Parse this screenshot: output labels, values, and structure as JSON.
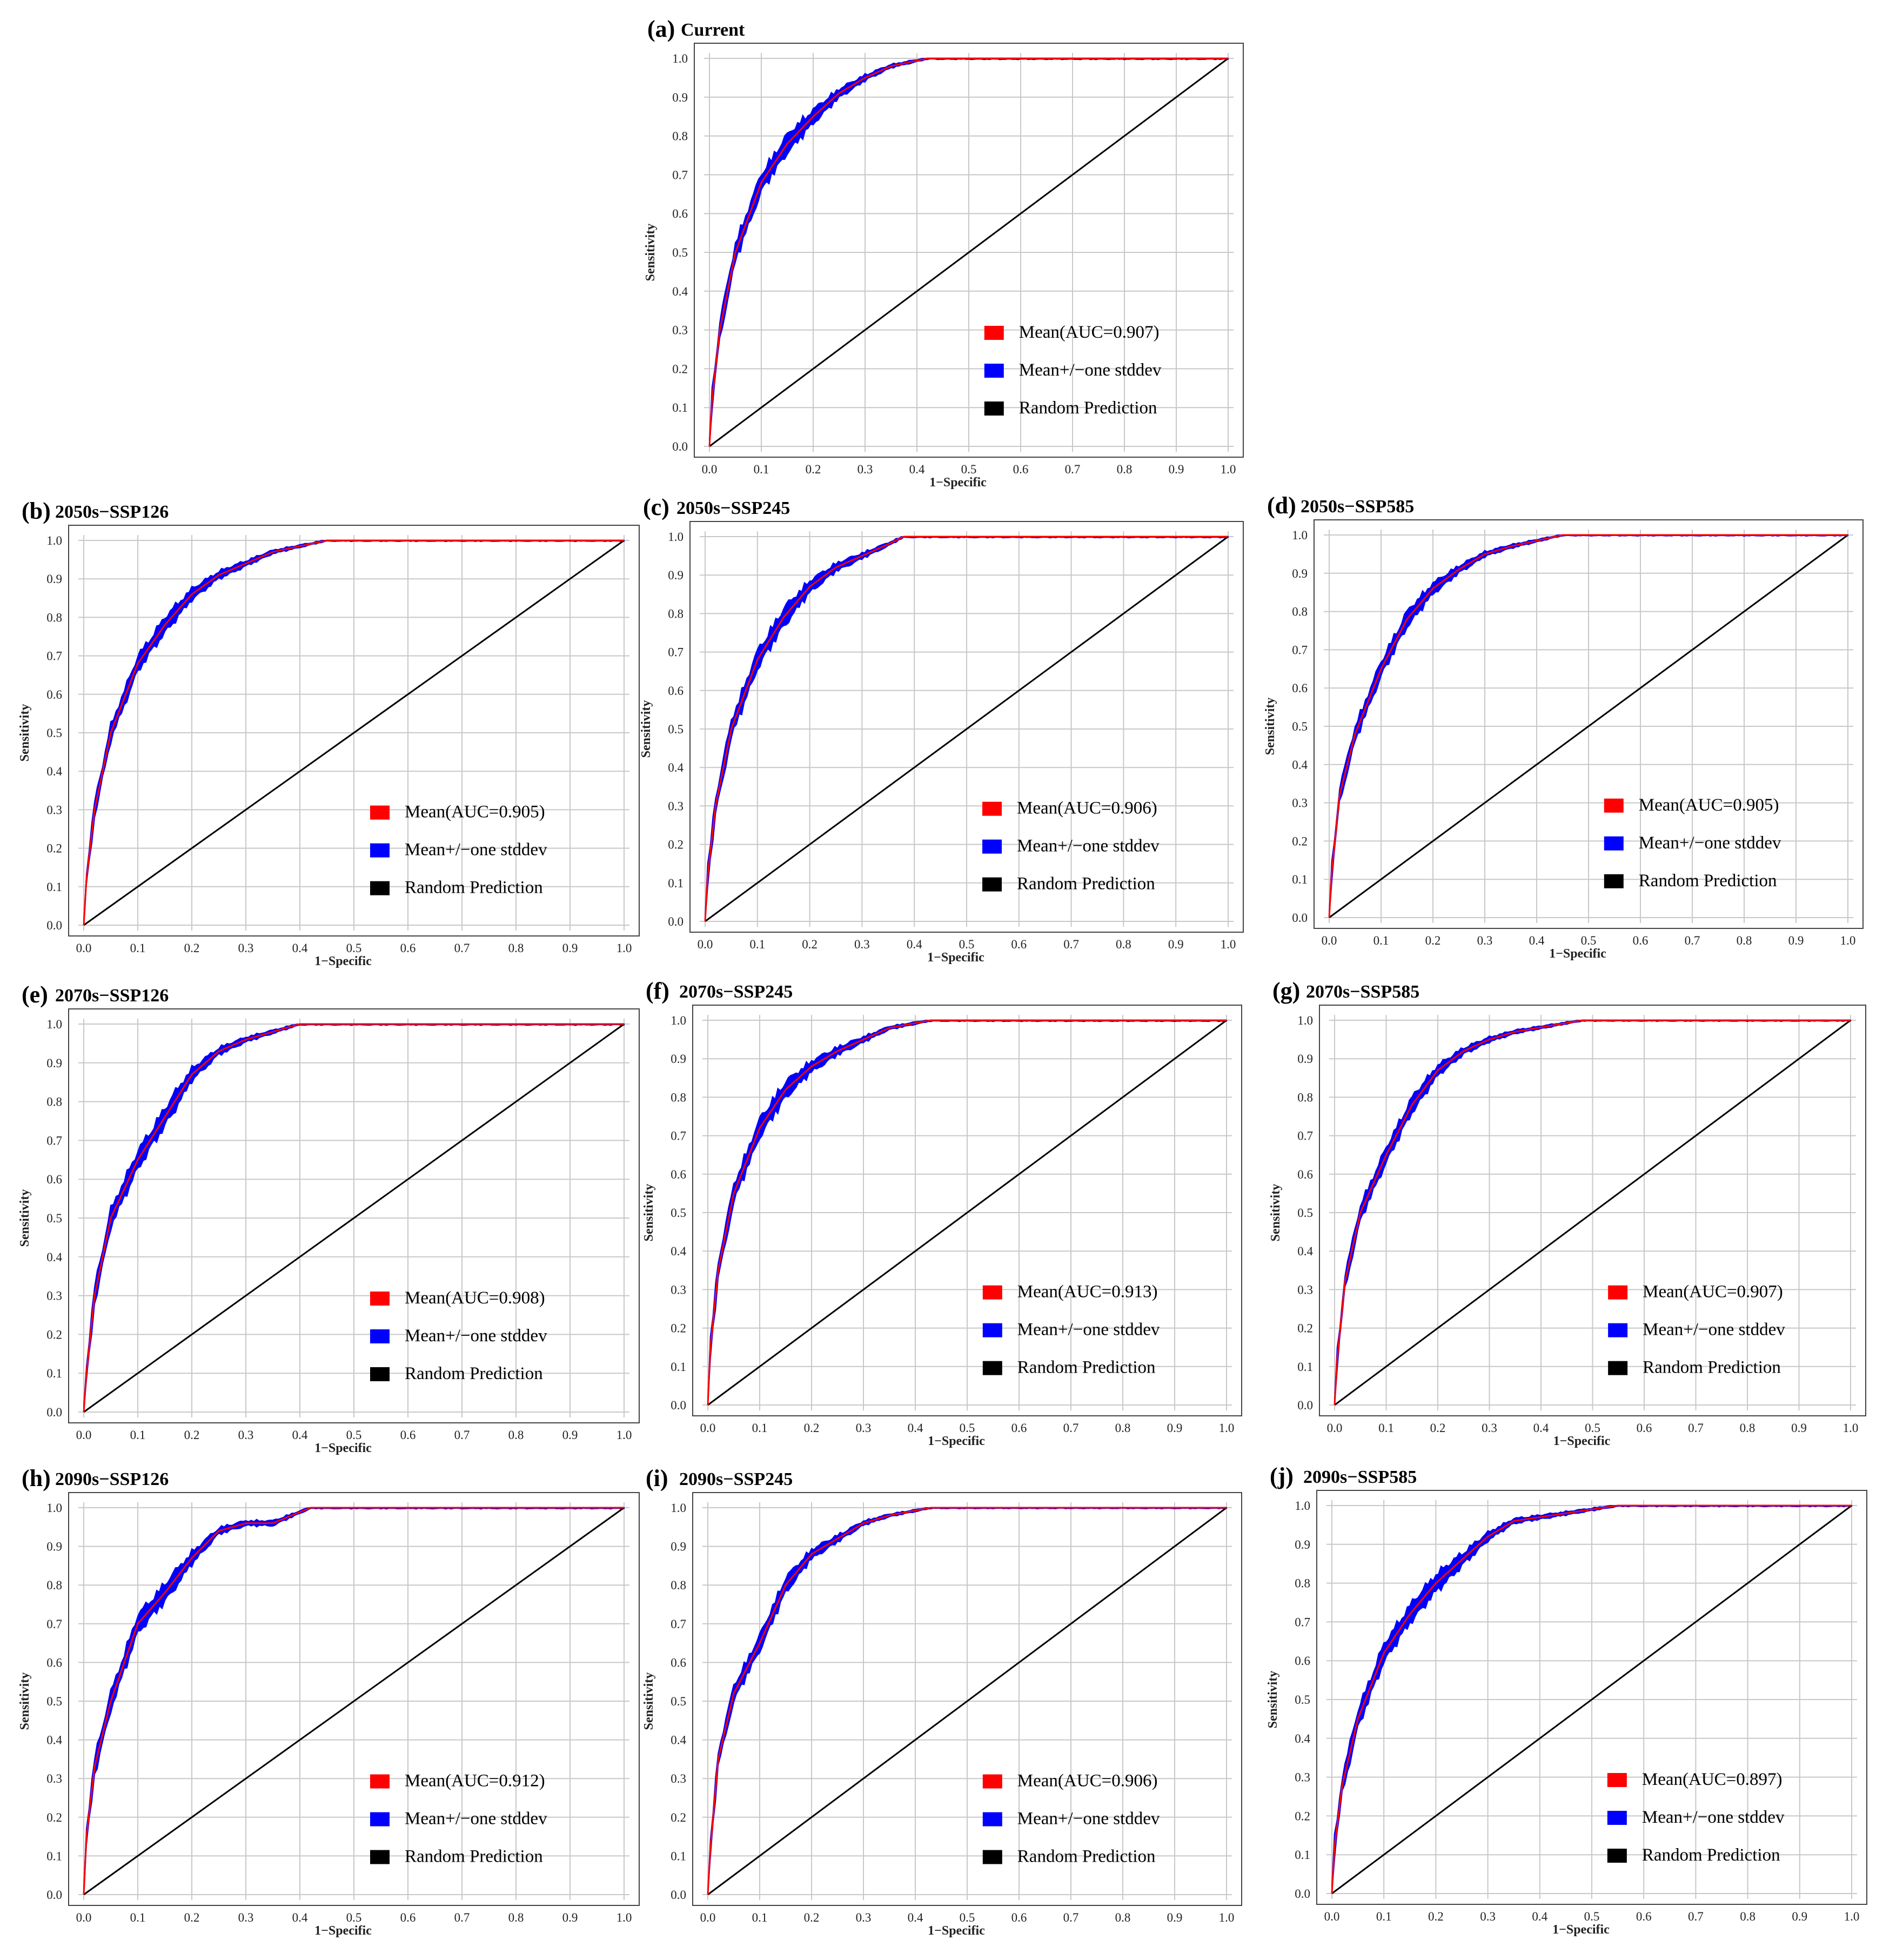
{
  "figure": {
    "colors": {
      "mean": "#ff0000",
      "band": "#0000ff",
      "random": "#000000",
      "grid": "#c8c8c8",
      "axis": "#444444"
    }
  },
  "chart_data": [
    {
      "id": "a",
      "label": "(a)",
      "title": "Current",
      "type": "line",
      "xlabel": "1−Specific",
      "ylabel": "Sensitivity",
      "xlim": [
        0,
        1
      ],
      "ylim": [
        0,
        1
      ],
      "xticks": [
        "0.0",
        "0.1",
        "0.2",
        "0.3",
        "0.4",
        "0.5",
        "0.6",
        "0.7",
        "0.8",
        "0.9",
        "1.0"
      ],
      "yticks": [
        "0.0",
        "0.1",
        "0.2",
        "0.3",
        "0.4",
        "0.5",
        "0.6",
        "0.7",
        "0.8",
        "0.9",
        "1.0"
      ],
      "grid": true,
      "legend_position": "bottom-right",
      "legend": [
        "Mean(AUC=0.907)",
        "Mean+/−one stddev",
        "Random Prediction"
      ],
      "auc": 0.907,
      "stddev_band": 0.035,
      "series": [
        {
          "name": "Mean",
          "x": [
            0,
            0.005,
            0.02,
            0.05,
            0.1,
            0.15,
            0.2,
            0.25,
            0.3,
            0.35,
            0.42,
            1.0
          ],
          "y": [
            0,
            0.12,
            0.3,
            0.5,
            0.68,
            0.78,
            0.85,
            0.91,
            0.95,
            0.98,
            1.0,
            1.0
          ]
        },
        {
          "name": "Random Prediction",
          "x": [
            0,
            1
          ],
          "y": [
            0,
            1
          ]
        }
      ]
    },
    {
      "id": "b",
      "label": "(b)",
      "title": "2050s−SSP126",
      "type": "line",
      "xlabel": "1−Specific",
      "ylabel": "Sensitivity",
      "xlim": [
        0,
        1
      ],
      "ylim": [
        0,
        1
      ],
      "xticks": [
        "0.0",
        "0.1",
        "0.2",
        "0.3",
        "0.4",
        "0.5",
        "0.6",
        "0.7",
        "0.8",
        "0.9",
        "1.0"
      ],
      "yticks": [
        "0.0",
        "0.1",
        "0.2",
        "0.3",
        "0.4",
        "0.5",
        "0.6",
        "0.7",
        "0.8",
        "0.9",
        "1.0"
      ],
      "grid": true,
      "legend_position": "bottom-right",
      "legend": [
        "Mean(AUC=0.905)",
        "Mean+/−one stddev",
        "Random Prediction"
      ],
      "auc": 0.905,
      "stddev_band": 0.03,
      "series": [
        {
          "name": "Mean",
          "x": [
            0,
            0.005,
            0.02,
            0.05,
            0.1,
            0.15,
            0.2,
            0.25,
            0.3,
            0.35,
            0.45,
            1.0
          ],
          "y": [
            0,
            0.12,
            0.3,
            0.5,
            0.68,
            0.78,
            0.86,
            0.91,
            0.94,
            0.97,
            1.0,
            1.0
          ]
        },
        {
          "name": "Random Prediction",
          "x": [
            0,
            1
          ],
          "y": [
            0,
            1
          ]
        }
      ]
    },
    {
      "id": "c",
      "label": "(c)",
      "title": "2050s−SSP245",
      "type": "line",
      "xlabel": "1−Specific",
      "ylabel": "Sensitivity",
      "xlim": [
        0,
        1
      ],
      "ylim": [
        0,
        1
      ],
      "xticks": [
        "0.0",
        "0.1",
        "0.2",
        "0.3",
        "0.4",
        "0.5",
        "0.6",
        "0.7",
        "0.8",
        "0.9",
        "1.0"
      ],
      "yticks": [
        "0.0",
        "0.1",
        "0.2",
        "0.3",
        "0.4",
        "0.5",
        "0.6",
        "0.7",
        "0.8",
        "0.9",
        "1.0"
      ],
      "grid": true,
      "legend_position": "bottom-right",
      "legend": [
        "Mean(AUC=0.906)",
        "Mean+/−one stddev",
        "Random Prediction"
      ],
      "auc": 0.906,
      "stddev_band": 0.035,
      "series": [
        {
          "name": "Mean",
          "x": [
            0,
            0.005,
            0.02,
            0.05,
            0.1,
            0.15,
            0.2,
            0.25,
            0.3,
            0.35,
            0.38,
            1.0
          ],
          "y": [
            0,
            0.12,
            0.3,
            0.5,
            0.68,
            0.79,
            0.87,
            0.92,
            0.95,
            0.98,
            1.0,
            1.0
          ]
        },
        {
          "name": "Random Prediction",
          "x": [
            0,
            1
          ],
          "y": [
            0,
            1
          ]
        }
      ]
    },
    {
      "id": "d",
      "label": "(d)",
      "title": "2050s−SSP585",
      "type": "line",
      "xlabel": "1−Specific",
      "ylabel": "Sensitivity",
      "xlim": [
        0,
        1
      ],
      "ylim": [
        0,
        1
      ],
      "xticks": [
        "0.0",
        "0.1",
        "0.2",
        "0.3",
        "0.4",
        "0.5",
        "0.6",
        "0.7",
        "0.8",
        "0.9",
        "1.0"
      ],
      "yticks": [
        "0.0",
        "0.1",
        "0.2",
        "0.3",
        "0.4",
        "0.5",
        "0.6",
        "0.7",
        "0.8",
        "0.9",
        "1.0"
      ],
      "grid": true,
      "legend_position": "bottom-right",
      "legend": [
        "Mean(AUC=0.905)",
        "Mean+/−one stddev",
        "Random Prediction"
      ],
      "auc": 0.905,
      "stddev_band": 0.03,
      "series": [
        {
          "name": "Mean",
          "x": [
            0,
            0.005,
            0.02,
            0.05,
            0.1,
            0.15,
            0.2,
            0.25,
            0.3,
            0.35,
            0.45,
            1.0
          ],
          "y": [
            0,
            0.12,
            0.32,
            0.48,
            0.65,
            0.78,
            0.86,
            0.91,
            0.95,
            0.97,
            1.0,
            1.0
          ]
        },
        {
          "name": "Random Prediction",
          "x": [
            0,
            1
          ],
          "y": [
            0,
            1
          ]
        }
      ]
    },
    {
      "id": "e",
      "label": "(e)",
      "title": "2070s−SSP126",
      "type": "line",
      "xlabel": "1−Specific",
      "ylabel": "Sensitivity",
      "xlim": [
        0,
        1
      ],
      "ylim": [
        0,
        1
      ],
      "xticks": [
        "0.0",
        "0.1",
        "0.2",
        "0.3",
        "0.4",
        "0.5",
        "0.6",
        "0.7",
        "0.8",
        "0.9",
        "1.0"
      ],
      "yticks": [
        "0.0",
        "0.1",
        "0.2",
        "0.3",
        "0.4",
        "0.5",
        "0.6",
        "0.7",
        "0.8",
        "0.9",
        "1.0"
      ],
      "grid": true,
      "legend_position": "bottom-right",
      "legend": [
        "Mean(AUC=0.908)",
        "Mean+/−one stddev",
        "Random Prediction"
      ],
      "auc": 0.908,
      "stddev_band": 0.035,
      "series": [
        {
          "name": "Mean",
          "x": [
            0,
            0.005,
            0.02,
            0.05,
            0.1,
            0.15,
            0.2,
            0.25,
            0.3,
            0.35,
            0.4,
            1.0
          ],
          "y": [
            0,
            0.1,
            0.3,
            0.5,
            0.65,
            0.76,
            0.87,
            0.93,
            0.96,
            0.98,
            1.0,
            1.0
          ]
        },
        {
          "name": "Random Prediction",
          "x": [
            0,
            1
          ],
          "y": [
            0,
            1
          ]
        }
      ]
    },
    {
      "id": "f",
      "label": "(f)",
      "title": "2070s−SSP245",
      "type": "line",
      "xlabel": "1−Specific",
      "ylabel": "Sensitivity",
      "xlim": [
        0,
        1
      ],
      "ylim": [
        0,
        1
      ],
      "xticks": [
        "0.0",
        "0.1",
        "0.2",
        "0.3",
        "0.4",
        "0.5",
        "0.6",
        "0.7",
        "0.8",
        "0.9",
        "1.0"
      ],
      "yticks": [
        "0.0",
        "0.1",
        "0.2",
        "0.3",
        "0.4",
        "0.5",
        "0.6",
        "0.7",
        "0.8",
        "0.9",
        "1.0"
      ],
      "grid": true,
      "legend_position": "bottom-right",
      "legend": [
        "Mean(AUC=0.913)",
        "Mean+/−one stddev",
        "Random Prediction"
      ],
      "auc": 0.913,
      "stddev_band": 0.035,
      "series": [
        {
          "name": "Mean",
          "x": [
            0,
            0.005,
            0.02,
            0.05,
            0.1,
            0.15,
            0.2,
            0.25,
            0.3,
            0.35,
            0.43,
            1.0
          ],
          "y": [
            0,
            0.15,
            0.35,
            0.55,
            0.72,
            0.82,
            0.88,
            0.92,
            0.95,
            0.98,
            1.0,
            1.0
          ]
        },
        {
          "name": "Random Prediction",
          "x": [
            0,
            1
          ],
          "y": [
            0,
            1
          ]
        }
      ]
    },
    {
      "id": "g",
      "label": "(g)",
      "title": "2070s−SSP585",
      "type": "line",
      "xlabel": "1−Specific",
      "ylabel": "Sensitivity",
      "xlim": [
        0,
        1
      ],
      "ylim": [
        0,
        1
      ],
      "xticks": [
        "0.0",
        "0.1",
        "0.2",
        "0.3",
        "0.4",
        "0.5",
        "0.6",
        "0.7",
        "0.8",
        "0.9",
        "1.0"
      ],
      "yticks": [
        "0.0",
        "0.1",
        "0.2",
        "0.3",
        "0.4",
        "0.5",
        "0.6",
        "0.7",
        "0.8",
        "0.9",
        "1.0"
      ],
      "grid": true,
      "legend_position": "bottom-right",
      "legend": [
        "Mean(AUC=0.907)",
        "Mean+/−one stddev",
        "Random Prediction"
      ],
      "auc": 0.907,
      "stddev_band": 0.03,
      "series": [
        {
          "name": "Mean",
          "x": [
            0,
            0.005,
            0.02,
            0.05,
            0.1,
            0.15,
            0.2,
            0.25,
            0.3,
            0.35,
            0.48,
            1.0
          ],
          "y": [
            0,
            0.12,
            0.32,
            0.5,
            0.65,
            0.78,
            0.87,
            0.92,
            0.95,
            0.97,
            1.0,
            1.0
          ]
        },
        {
          "name": "Random Prediction",
          "x": [
            0,
            1
          ],
          "y": [
            0,
            1
          ]
        }
      ]
    },
    {
      "id": "h",
      "label": "(h)",
      "title": "2090s−SSP126",
      "type": "line",
      "xlabel": "1−Specific",
      "ylabel": "Sensitivity",
      "xlim": [
        0,
        1
      ],
      "ylim": [
        0,
        1
      ],
      "xticks": [
        "0.0",
        "0.1",
        "0.2",
        "0.3",
        "0.4",
        "0.5",
        "0.6",
        "0.7",
        "0.8",
        "0.9",
        "1.0"
      ],
      "yticks": [
        "0.0",
        "0.1",
        "0.2",
        "0.3",
        "0.4",
        "0.5",
        "0.6",
        "0.7",
        "0.8",
        "0.9",
        "1.0"
      ],
      "grid": true,
      "legend_position": "bottom-right",
      "legend": [
        "Mean(AUC=0.912)",
        "Mean+/−one stddev",
        "Random Prediction"
      ],
      "auc": 0.912,
      "stddev_band": 0.035,
      "series": [
        {
          "name": "Mean",
          "x": [
            0,
            0.005,
            0.02,
            0.05,
            0.1,
            0.15,
            0.2,
            0.25,
            0.3,
            0.35,
            0.42,
            1.0
          ],
          "y": [
            0,
            0.15,
            0.33,
            0.5,
            0.7,
            0.78,
            0.87,
            0.94,
            0.96,
            0.96,
            1.0,
            1.0
          ]
        },
        {
          "name": "Random Prediction",
          "x": [
            0,
            1
          ],
          "y": [
            0,
            1
          ]
        }
      ]
    },
    {
      "id": "i",
      "label": "(i)",
      "title": "2090s−SSP245",
      "type": "line",
      "xlabel": "1−Specific",
      "ylabel": "Sensitivity",
      "xlim": [
        0,
        1
      ],
      "ylim": [
        0,
        1
      ],
      "xticks": [
        "0.0",
        "0.1",
        "0.2",
        "0.3",
        "0.4",
        "0.5",
        "0.6",
        "0.7",
        "0.8",
        "0.9",
        "1.0"
      ],
      "yticks": [
        "0.0",
        "0.1",
        "0.2",
        "0.3",
        "0.4",
        "0.5",
        "0.6",
        "0.7",
        "0.8",
        "0.9",
        "1.0"
      ],
      "grid": true,
      "legend_position": "bottom-right",
      "legend": [
        "Mean(AUC=0.906)",
        "Mean+/−one stddev",
        "Random Prediction"
      ],
      "auc": 0.906,
      "stddev_band": 0.03,
      "series": [
        {
          "name": "Mean",
          "x": [
            0,
            0.005,
            0.02,
            0.05,
            0.1,
            0.15,
            0.2,
            0.25,
            0.3,
            0.35,
            0.43,
            1.0
          ],
          "y": [
            0,
            0.12,
            0.35,
            0.52,
            0.65,
            0.8,
            0.88,
            0.92,
            0.96,
            0.98,
            1.0,
            1.0
          ]
        },
        {
          "name": "Random Prediction",
          "x": [
            0,
            1
          ],
          "y": [
            0,
            1
          ]
        }
      ]
    },
    {
      "id": "j",
      "label": "(j)",
      "title": "2090s−SSP585",
      "type": "line",
      "xlabel": "1−Specific",
      "ylabel": "Sensitivity",
      "xlim": [
        0,
        1
      ],
      "ylim": [
        0,
        1
      ],
      "xticks": [
        "0.0",
        "0.1",
        "0.2",
        "0.3",
        "0.4",
        "0.5",
        "0.6",
        "0.7",
        "0.8",
        "0.9",
        "1.0"
      ],
      "yticks": [
        "0.0",
        "0.1",
        "0.2",
        "0.3",
        "0.4",
        "0.5",
        "0.6",
        "0.7",
        "0.8",
        "0.9",
        "1.0"
      ],
      "grid": true,
      "legend_position": "bottom-right",
      "legend": [
        "Mean(AUC=0.897)",
        "Mean+/−one stddev",
        "Random Prediction"
      ],
      "auc": 0.897,
      "stddev_band": 0.035,
      "series": [
        {
          "name": "Mean",
          "x": [
            0,
            0.005,
            0.02,
            0.05,
            0.1,
            0.15,
            0.2,
            0.25,
            0.3,
            0.35,
            0.55,
            1.0
          ],
          "y": [
            0,
            0.12,
            0.28,
            0.45,
            0.62,
            0.72,
            0.8,
            0.86,
            0.92,
            0.96,
            1.0,
            1.0
          ]
        },
        {
          "name": "Random Prediction",
          "x": [
            0,
            1
          ],
          "y": [
            0,
            1
          ]
        }
      ]
    }
  ]
}
